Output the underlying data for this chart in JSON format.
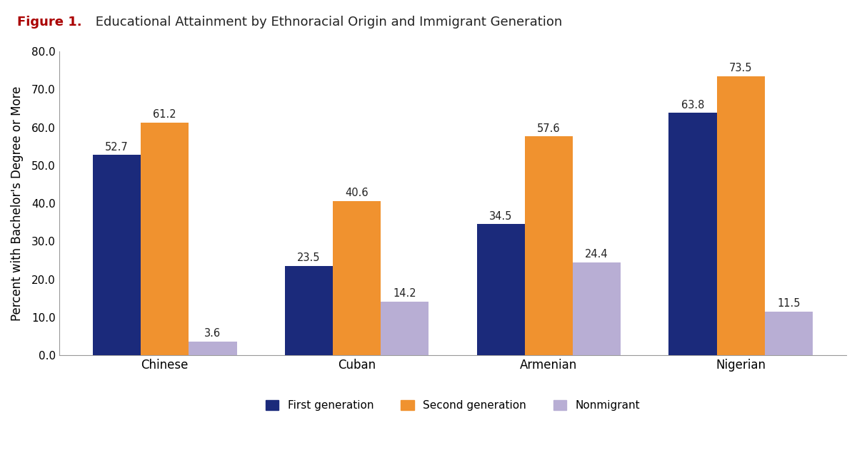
{
  "title_bold": "Figure 1.",
  "title_rest": " Educational Attainment by Ethnoracial Origin and Immigrant Generation",
  "categories": [
    "Chinese",
    "Cuban",
    "Armenian",
    "Nigerian"
  ],
  "series": {
    "First generation": [
      52.7,
      23.5,
      34.5,
      63.8
    ],
    "Second generation": [
      61.2,
      40.6,
      57.6,
      73.5
    ],
    "Nonmigrant": [
      3.6,
      14.2,
      24.4,
      11.5
    ]
  },
  "colors": {
    "First generation": "#1b2a7b",
    "Second generation": "#f0922f",
    "Nonmigrant": "#b8aed4"
  },
  "ylabel": "Percent with Bachelor's Degree or More",
  "ylim": [
    0,
    80
  ],
  "yticks": [
    0.0,
    10.0,
    20.0,
    30.0,
    40.0,
    50.0,
    60.0,
    70.0,
    80.0
  ],
  "bar_width": 0.25,
  "label_fontsize": 10.5,
  "tick_fontsize": 11,
  "ylabel_fontsize": 12,
  "legend_fontsize": 11,
  "title_fontsize": 13,
  "title_bold_color": "#aa0000",
  "title_rest_color": "#222222",
  "background_color": "#ffffff",
  "spine_color": "#999999",
  "label_color": "#222222",
  "xtick_fontsize": 12
}
